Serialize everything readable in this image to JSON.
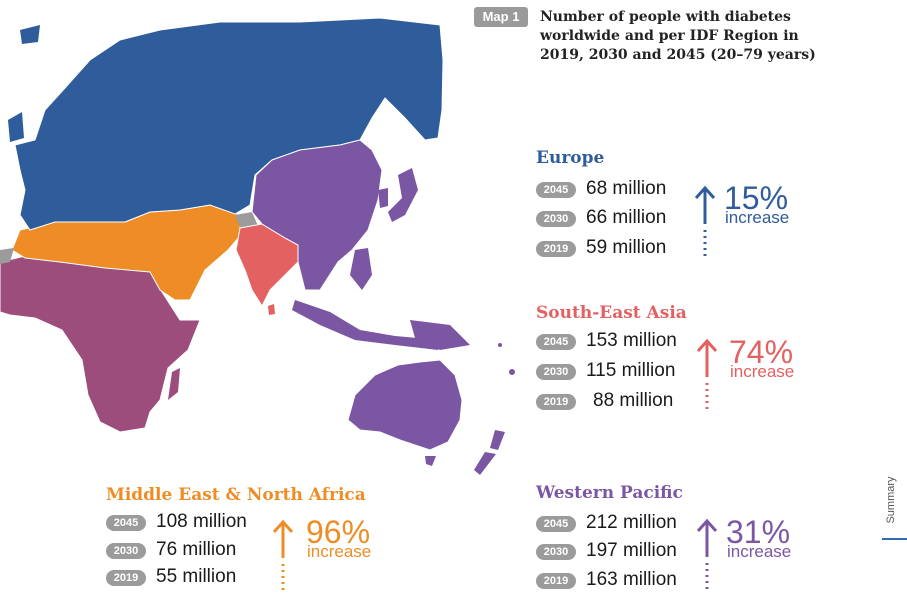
{
  "map": {
    "badge": "Map 1",
    "title": "Number of people with diabetes worldwide and per IDF Region in 2019, 2030 and 2045 (20–79 years)"
  },
  "colors": {
    "europe": "#2f5c9a",
    "south_east_asia": "#e36160",
    "mena": "#ee8d25",
    "western_pacific": "#7b56a3",
    "africa": "#9c4d7c",
    "other": "#9b9b9b",
    "ocean": "#ffffff"
  },
  "regions": {
    "europe": {
      "name": "Europe",
      "rows": [
        {
          "year": "2045",
          "value": "68 million"
        },
        {
          "year": "2030",
          "value": "66 million"
        },
        {
          "year": "2019",
          "value": "59 million"
        }
      ],
      "percent": "15%",
      "increase": "increase"
    },
    "sea": {
      "name": "South-East Asia",
      "rows": [
        {
          "year": "2045",
          "value": "153 million"
        },
        {
          "year": "2030",
          "value": "115 million"
        },
        {
          "year": "2019",
          "value": "88 million"
        }
      ],
      "percent": "74%",
      "increase": "increase"
    },
    "mena": {
      "name": "Middle East & North Africa",
      "rows": [
        {
          "year": "2045",
          "value": "108 million"
        },
        {
          "year": "2030",
          "value": "76 million"
        },
        {
          "year": "2019",
          "value": "55 million"
        }
      ],
      "percent": "96%",
      "increase": "increase"
    },
    "wp": {
      "name": "Western Pacific",
      "rows": [
        {
          "year": "2045",
          "value": "212 million"
        },
        {
          "year": "2030",
          "value": "197 million"
        },
        {
          "year": "2019",
          "value": "163 million"
        }
      ],
      "percent": "31%",
      "increase": "increase"
    }
  },
  "side": {
    "label": "Summary"
  }
}
